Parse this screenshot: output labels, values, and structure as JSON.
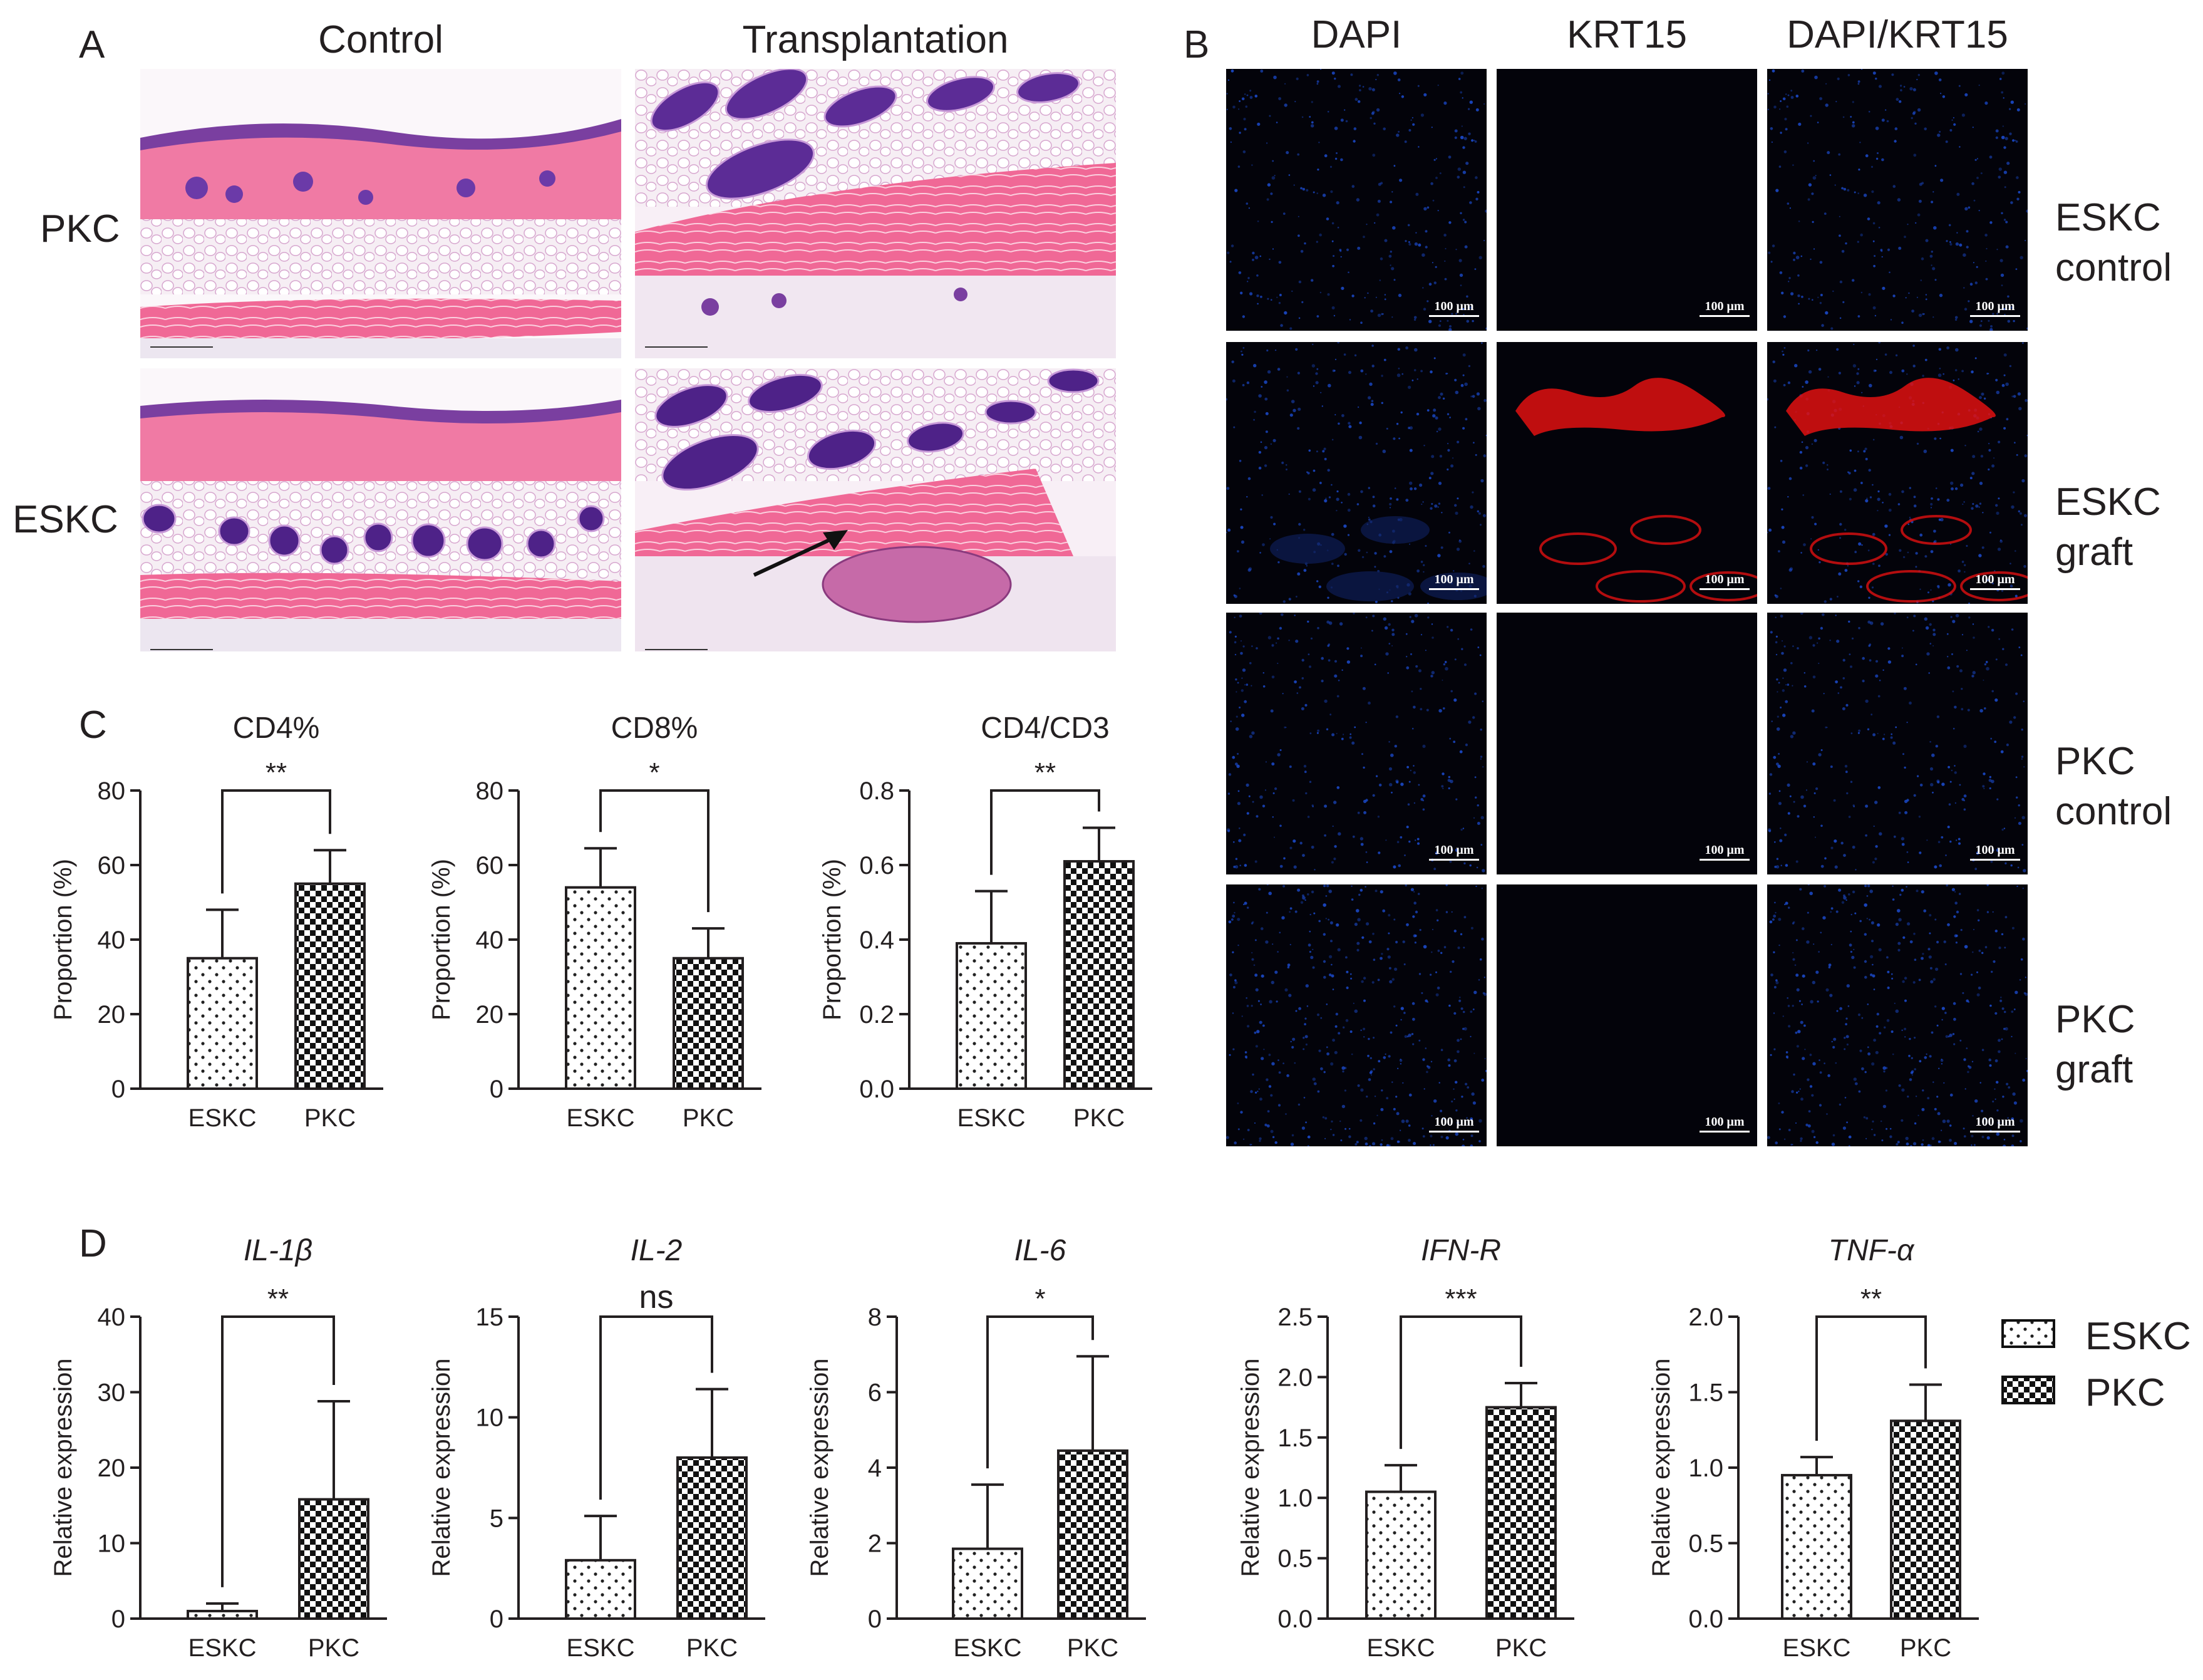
{
  "panel_A": {
    "letter": "A",
    "col_headers": [
      "Control",
      "Transplantation"
    ],
    "row_labels": [
      "PKC",
      "ESKC"
    ]
  },
  "panel_B": {
    "letter": "B",
    "col_headers": [
      "DAPI",
      "KRT15",
      "DAPI/KRT15"
    ],
    "row_labels": [
      {
        "line1": "ESKC",
        "line2": "control"
      },
      {
        "line1": "ESKC",
        "line2": "graft"
      },
      {
        "line1": "PKC",
        "line2": "control"
      },
      {
        "line1": "PKC",
        "line2": "graft"
      }
    ],
    "scale_label": "100 μm",
    "colors": {
      "dapi": "#1d4fd8",
      "krt15": "#e01010"
    }
  },
  "panel_C": {
    "letter": "C"
  },
  "panel_D": {
    "letter": "D"
  },
  "legend": {
    "items": [
      {
        "label": "ESKC",
        "pattern": "dots"
      },
      {
        "label": "PKC",
        "pattern": "checker"
      }
    ]
  },
  "chart_data": [
    {
      "panel": "C",
      "type": "bar",
      "title": "CD4%",
      "title_italic": false,
      "ylabel": "Proportion (%)",
      "ylim": [
        0,
        80
      ],
      "yticks": [
        "0",
        "20",
        "40",
        "60",
        "80"
      ],
      "categories": [
        "ESKC",
        "PKC"
      ],
      "values": [
        35,
        55
      ],
      "errors": [
        13,
        9
      ],
      "significance": "**"
    },
    {
      "panel": "C",
      "type": "bar",
      "title": "CD8%",
      "title_italic": false,
      "ylabel": "Proportion (%)",
      "ylim": [
        0,
        80
      ],
      "yticks": [
        "0",
        "20",
        "40",
        "60",
        "80"
      ],
      "categories": [
        "ESKC",
        "PKC"
      ],
      "values": [
        54,
        35
      ],
      "errors": [
        10.5,
        8
      ],
      "significance": "*"
    },
    {
      "panel": "C",
      "type": "bar",
      "title": "CD4/CD3",
      "title_italic": false,
      "ylabel": "Proportion (%)",
      "ylim": [
        0,
        0.8
      ],
      "yticks": [
        "0.0",
        "0.2",
        "0.4",
        "0.6",
        "0.8"
      ],
      "categories": [
        "ESKC",
        "PKC"
      ],
      "values": [
        0.39,
        0.61
      ],
      "errors": [
        0.14,
        0.09
      ],
      "significance": "**"
    },
    {
      "panel": "D",
      "type": "bar",
      "title": "IL-1β",
      "title_italic": true,
      "ylabel": "Relative expression",
      "ylim": [
        0,
        40
      ],
      "yticks": [
        "0",
        "10",
        "20",
        "30",
        "40"
      ],
      "categories": [
        "ESKC",
        "PKC"
      ],
      "values": [
        1,
        15.8
      ],
      "errors": [
        1,
        13
      ],
      "significance": "**"
    },
    {
      "panel": "D",
      "type": "bar",
      "title": "IL-2",
      "title_italic": true,
      "ylabel": "Relative expression",
      "ylim": [
        0,
        15
      ],
      "yticks": [
        "0",
        "5",
        "10",
        "15"
      ],
      "categories": [
        "ESKC",
        "PKC"
      ],
      "values": [
        2.9,
        8
      ],
      "errors": [
        2.2,
        3.4
      ],
      "significance": "ns"
    },
    {
      "panel": "D",
      "type": "bar",
      "title": "IL-6",
      "title_italic": true,
      "ylabel": "Relative expression",
      "ylim": [
        0,
        8
      ],
      "yticks": [
        "0",
        "2",
        "4",
        "6",
        "8"
      ],
      "categories": [
        "ESKC",
        "PKC"
      ],
      "values": [
        1.85,
        4.45
      ],
      "errors": [
        1.7,
        2.5
      ],
      "significance": "*"
    },
    {
      "panel": "D",
      "type": "bar",
      "title": "IFN-R",
      "title_italic": true,
      "ylabel": "Relative expression",
      "ylim": [
        0,
        2.5
      ],
      "yticks": [
        "0.0",
        "0.5",
        "1.0",
        "1.5",
        "2.0",
        "2.5"
      ],
      "categories": [
        "ESKC",
        "PKC"
      ],
      "values": [
        1.05,
        1.75
      ],
      "errors": [
        0.22,
        0.2
      ],
      "significance": "***"
    },
    {
      "panel": "D",
      "type": "bar",
      "title": "TNF-α",
      "title_italic": true,
      "ylabel": "Relative expression",
      "ylim": [
        0,
        2.0
      ],
      "yticks": [
        "0.0",
        "0.5",
        "1.0",
        "1.5",
        "2.0"
      ],
      "categories": [
        "ESKC",
        "PKC"
      ],
      "values": [
        0.95,
        1.31
      ],
      "errors": [
        0.12,
        0.24
      ],
      "significance": "**"
    }
  ]
}
